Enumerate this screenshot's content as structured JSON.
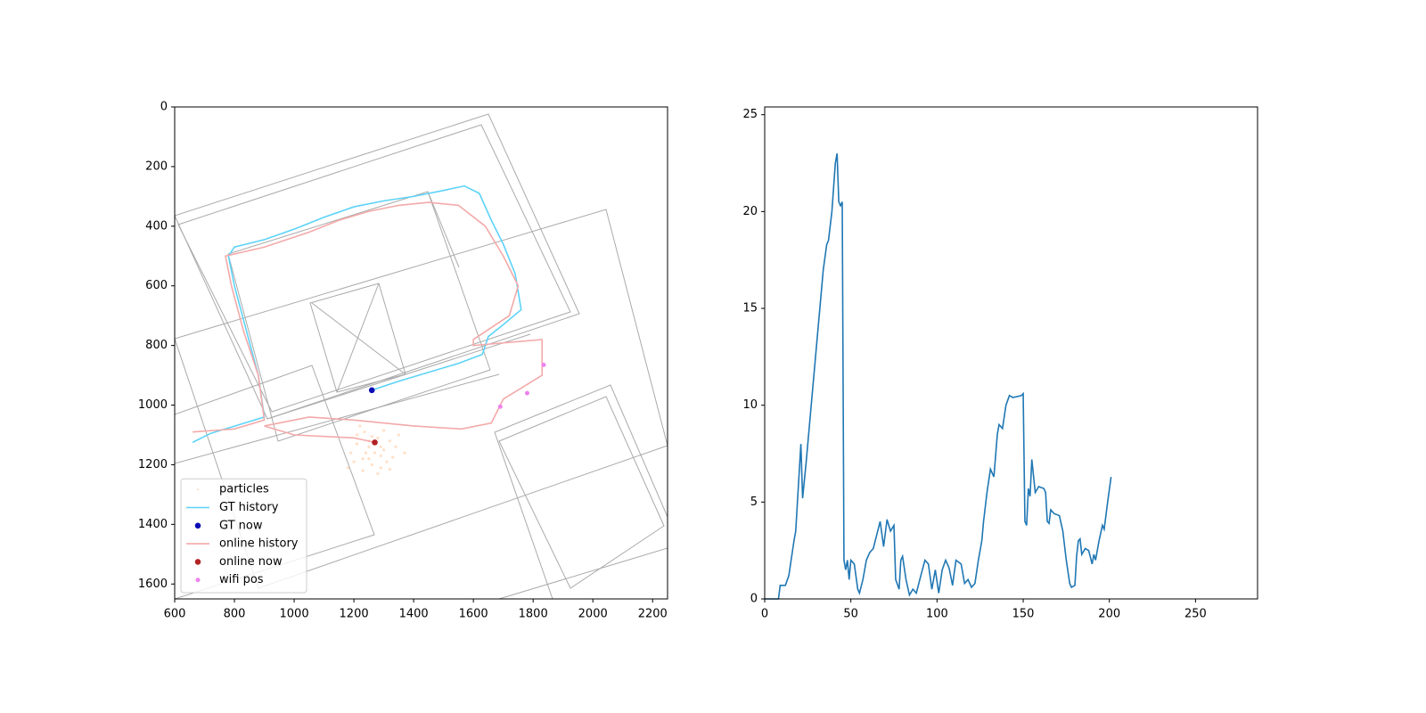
{
  "chart_data": [
    {
      "type": "map",
      "xlim": [
        600,
        2250
      ],
      "ylim": [
        1650,
        0
      ],
      "xticks": [
        600,
        800,
        1000,
        1200,
        1400,
        1600,
        1800,
        2000,
        2200
      ],
      "yticks": [
        0,
        200,
        400,
        600,
        800,
        1000,
        1200,
        1400,
        1600
      ],
      "legend": "lower left",
      "series": [
        {
          "name": "particles",
          "kind": "scatter",
          "color": "#ffd3b0",
          "x": [
            1210,
            1235,
            1250,
            1280,
            1300,
            1320,
            1190,
            1230,
            1260,
            1290,
            1340,
            1210,
            1250,
            1270,
            1310,
            1180,
            1230,
            1290,
            1330,
            1260,
            1240,
            1300,
            1350,
            1200,
            1280,
            1320,
            1250,
            1370,
            1220,
            1290
          ],
          "y": [
            1100,
            1090,
            1140,
            1110,
            1150,
            1120,
            1160,
            1180,
            1200,
            1170,
            1140,
            1130,
            1120,
            1160,
            1190,
            1210,
            1220,
            1210,
            1175,
            1105,
            1160,
            1085,
            1100,
            1190,
            1230,
            1215,
            1180,
            1160,
            1070,
            1140
          ]
        },
        {
          "name": "GT history",
          "kind": "line",
          "color": "#5dd3f8",
          "x": [
            660,
            720,
            900,
            880,
            840,
            800,
            780,
            800,
            900,
            1000,
            1100,
            1200,
            1300,
            1400,
            1500,
            1570,
            1620,
            1660,
            1700,
            1740,
            1760,
            1700,
            1650,
            1630,
            1550,
            1450,
            1350,
            1260
          ],
          "y": [
            1125,
            1095,
            1040,
            900,
            750,
            600,
            500,
            470,
            445,
            410,
            370,
            335,
            315,
            300,
            280,
            265,
            290,
            380,
            460,
            560,
            680,
            730,
            770,
            830,
            860,
            890,
            920,
            950
          ]
        },
        {
          "name": "GT now",
          "kind": "scatter",
          "color": "#0a0ab4",
          "x": [
            1260
          ],
          "y": [
            950
          ]
        },
        {
          "name": "online history",
          "kind": "line",
          "color": "#f4a9a9",
          "x": [
            660,
            800,
            900,
            880,
            830,
            790,
            770,
            900,
            1050,
            1150,
            1250,
            1350,
            1450,
            1550,
            1640,
            1700,
            1750,
            1720,
            1600,
            1600,
            1830,
            1830,
            1700,
            1660,
            1560,
            1400,
            1200,
            1050,
            900,
            1000,
            1200,
            1270
          ],
          "y": [
            1090,
            1080,
            1050,
            900,
            750,
            600,
            500,
            470,
            420,
            380,
            350,
            330,
            320,
            330,
            400,
            500,
            600,
            700,
            780,
            800,
            780,
            900,
            980,
            1060,
            1080,
            1070,
            1050,
            1040,
            1070,
            1100,
            1110,
            1125
          ]
        },
        {
          "name": "online now",
          "kind": "scatter",
          "color": "#b22222",
          "x": [
            1270
          ],
          "y": [
            1125
          ]
        },
        {
          "name": "wifi pos",
          "kind": "scatter",
          "color": "#ee82ee",
          "x": [
            1690,
            1780,
            1835
          ],
          "y": [
            1005,
            960,
            865
          ]
        }
      ]
    },
    {
      "type": "line",
      "xlim": [
        0,
        286
      ],
      "ylim": [
        0,
        25.4
      ],
      "xticks": [
        0,
        50,
        100,
        150,
        200,
        250
      ],
      "yticks": [
        0,
        5,
        10,
        15,
        20,
        25
      ],
      "series": [
        {
          "color": "#1f77b4",
          "x": [
            0,
            8,
            9,
            12,
            14,
            17,
            18,
            19,
            21,
            22,
            24,
            26,
            28,
            30,
            32,
            34,
            36,
            37,
            39,
            41,
            42,
            43,
            44,
            45,
            46,
            47,
            48,
            49,
            50,
            52,
            54,
            55,
            57,
            59,
            61,
            63,
            67,
            69,
            71,
            73,
            75,
            76,
            78,
            79,
            80,
            82,
            84,
            86,
            88,
            90,
            93,
            95,
            97,
            99,
            101,
            103,
            105,
            107,
            109,
            111,
            114,
            116,
            118,
            120,
            122,
            124,
            126,
            127,
            129,
            131,
            133,
            135,
            136,
            138,
            140,
            142,
            144,
            149,
            150,
            151,
            152,
            153,
            154,
            155,
            157,
            159,
            162,
            163,
            164,
            165,
            166,
            168,
            171,
            173,
            175,
            177,
            178,
            180,
            181,
            182,
            183,
            184,
            186,
            188,
            190,
            191,
            192,
            194,
            196,
            197,
            199,
            201
          ],
          "y": [
            0,
            0,
            0.7,
            0.7,
            1.2,
            3,
            3.5,
            5,
            8,
            5.2,
            7,
            9,
            11,
            13,
            15,
            17,
            18.3,
            18.5,
            20,
            22.5,
            23,
            20.5,
            20.3,
            20.5,
            2,
            1.5,
            2,
            1,
            2,
            1.8,
            0.5,
            0.3,
            1,
            2,
            2.4,
            2.6,
            4,
            2.7,
            4.1,
            3.5,
            3.8,
            1,
            0.5,
            2,
            2.2,
            1,
            0.2,
            0.5,
            0.3,
            1,
            2,
            1.8,
            0.5,
            1.5,
            0.3,
            1.5,
            2,
            1.6,
            0.7,
            2,
            1.8,
            0.8,
            1,
            0.6,
            0.8,
            2,
            3,
            4,
            5.5,
            6.7,
            6.3,
            8.5,
            9,
            8.8,
            10,
            10.5,
            10.4,
            10.5,
            10.6,
            4,
            3.8,
            5.7,
            5.3,
            7.2,
            5.5,
            5.8,
            5.7,
            5.5,
            4,
            3.9,
            4.6,
            4.4,
            4.3,
            3.5,
            2,
            0.8,
            0.6,
            0.7,
            2.2,
            3,
            3.1,
            2.3,
            2.6,
            2.5,
            1.8,
            2.3,
            2,
            3,
            3.8,
            3.6,
            5,
            6.3
          ]
        }
      ]
    }
  ]
}
